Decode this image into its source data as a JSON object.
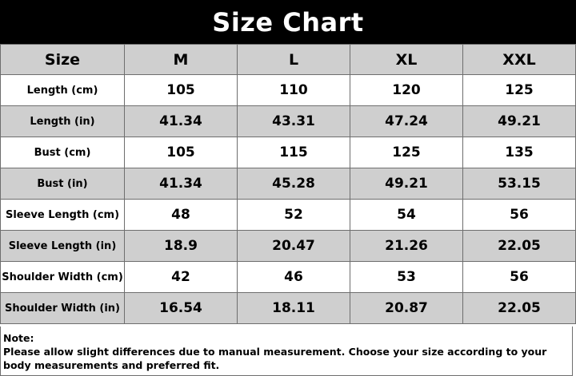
{
  "title": "Size Chart",
  "table": {
    "headers": [
      "Size",
      "M",
      "L",
      "XL",
      "XXL"
    ],
    "rows": [
      {
        "label": "Length (cm)",
        "values": [
          "105",
          "110",
          "120",
          "125"
        ]
      },
      {
        "label": "Length (in)",
        "values": [
          "41.34",
          "43.31",
          "47.24",
          "49.21"
        ]
      },
      {
        "label": "Bust (cm)",
        "values": [
          "105",
          "115",
          "125",
          "135"
        ]
      },
      {
        "label": "Bust (in)",
        "values": [
          "41.34",
          "45.28",
          "49.21",
          "53.15"
        ]
      },
      {
        "label": "Sleeve Length (cm)",
        "values": [
          "48",
          "52",
          "54",
          "56"
        ]
      },
      {
        "label": "Sleeve Length (in)",
        "values": [
          "18.9",
          "20.47",
          "21.26",
          "22.05"
        ]
      },
      {
        "label": "Shoulder Width (cm)",
        "values": [
          "42",
          "46",
          "53",
          "56"
        ]
      },
      {
        "label": "Shoulder Width (in)",
        "values": [
          "16.54",
          "18.11",
          "20.87",
          "22.05"
        ]
      }
    ]
  },
  "note": {
    "heading": "Note:",
    "text": "Please allow slight differences due to manual measurement. Choose your size according to your body measurements and preferred fit."
  },
  "colors": {
    "title_bg": "#000000",
    "title_text": "#ffffff",
    "shaded_row": "#cfcfcf",
    "plain_row": "#ffffff",
    "border": "#6e6e6e"
  }
}
